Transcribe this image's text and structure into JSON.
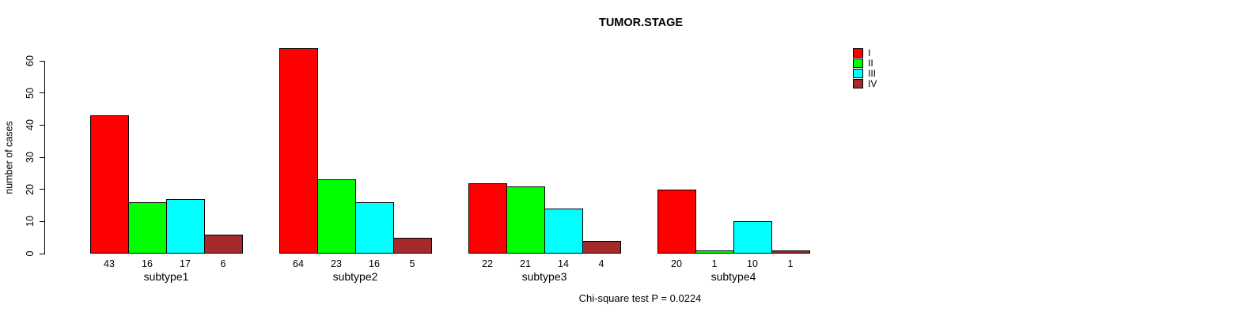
{
  "title": "TUMOR.STAGE",
  "y_axis": {
    "label": "number of cases",
    "ticks": [
      0,
      10,
      20,
      30,
      40,
      50,
      60
    ]
  },
  "legend": {
    "items": [
      {
        "label": "I",
        "color": "#FF0000"
      },
      {
        "label": "II",
        "color": "#00FF00"
      },
      {
        "label": "III",
        "color": "#00FFFF"
      },
      {
        "label": "IV",
        "color": "#A52A2A"
      }
    ]
  },
  "footer": {
    "text": "Chi-square test P = 0.0224"
  },
  "chart_data": {
    "type": "bar",
    "title": "TUMOR.STAGE",
    "xlabel": "",
    "ylabel": "number of cases",
    "ylim": [
      0,
      60
    ],
    "yticks": [
      0,
      10,
      20,
      30,
      40,
      50,
      60
    ],
    "grid": false,
    "legend_position": "top-right",
    "bar_value_labels_shown": true,
    "categories": [
      "subtype1",
      "subtype2",
      "subtype3",
      "subtype4"
    ],
    "series": [
      {
        "name": "I",
        "color": "#FF0000",
        "values": [
          43,
          64,
          22,
          20
        ]
      },
      {
        "name": "II",
        "color": "#00FF00",
        "values": [
          16,
          23,
          21,
          1
        ]
      },
      {
        "name": "III",
        "color": "#00FFFF",
        "values": [
          17,
          16,
          14,
          10
        ]
      },
      {
        "name": "IV",
        "color": "#A52A2A",
        "values": [
          6,
          5,
          4,
          1
        ]
      }
    ],
    "annotation": "Chi-square test P = 0.0224"
  }
}
